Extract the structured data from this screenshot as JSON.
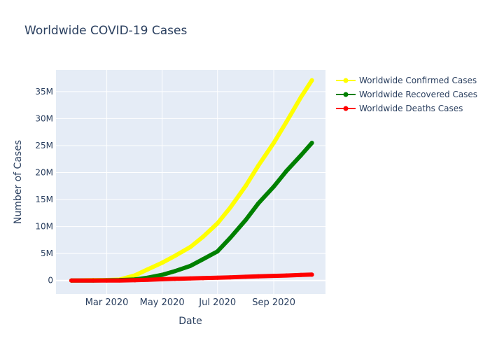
{
  "chart_data": {
    "type": "line",
    "title": "Worldwide COVID-19 Cases",
    "xlabel": "Date",
    "ylabel": "Number of Cases",
    "x_ticks": [
      {
        "date": "2020-03-01",
        "label": "Mar 2020"
      },
      {
        "date": "2020-05-01",
        "label": "May 2020"
      },
      {
        "date": "2020-07-01",
        "label": "Jul 2020"
      },
      {
        "date": "2020-09-01",
        "label": "Sep 2020"
      }
    ],
    "y_ticks": [
      {
        "value": 0,
        "label": "0"
      },
      {
        "value": 5000000,
        "label": "5M"
      },
      {
        "value": 10000000,
        "label": "10M"
      },
      {
        "value": 15000000,
        "label": "15M"
      },
      {
        "value": 20000000,
        "label": "20M"
      },
      {
        "value": 25000000,
        "label": "25M"
      },
      {
        "value": 30000000,
        "label": "30M"
      },
      {
        "value": 35000000,
        "label": "35M"
      }
    ],
    "xlim": [
      "2020-01-05",
      "2020-10-28"
    ],
    "ylim": [
      -2500000,
      39000000
    ],
    "grid": true,
    "legend_position": "top-right",
    "x": [
      "2020-01-22",
      "2020-02-15",
      "2020-03-01",
      "2020-03-15",
      "2020-04-01",
      "2020-04-15",
      "2020-05-01",
      "2020-05-15",
      "2020-06-01",
      "2020-06-15",
      "2020-07-01",
      "2020-07-15",
      "2020-08-01",
      "2020-08-15",
      "2020-09-01",
      "2020-09-15",
      "2020-10-01",
      "2020-10-13"
    ],
    "series": [
      {
        "name": "Worldwide Confirmed Cases",
        "color": "#ffff00",
        "values": [
          600,
          70000,
          90000,
          170000,
          950000,
          2050000,
          3300000,
          4550000,
          6200000,
          8100000,
          10600000,
          13500000,
          17500000,
          21300000,
          25500000,
          29400000,
          34000000,
          37100000
        ]
      },
      {
        "name": "Worldwide Recovered Cases",
        "color": "#008000",
        "values": [
          30,
          9000,
          42000,
          75000,
          200000,
          520000,
          1050000,
          1730000,
          2700000,
          3950000,
          5400000,
          7900000,
          11200000,
          14300000,
          17400000,
          20300000,
          23200000,
          25500000
        ]
      },
      {
        "name": "Worldwide Deaths Cases",
        "color": "#ff0000",
        "values": [
          17,
          1500,
          3000,
          6500,
          50000,
          135000,
          240000,
          310000,
          380000,
          440000,
          520000,
          580000,
          690000,
          770000,
          860000,
          930000,
          1030000,
          1090000
        ]
      }
    ]
  }
}
